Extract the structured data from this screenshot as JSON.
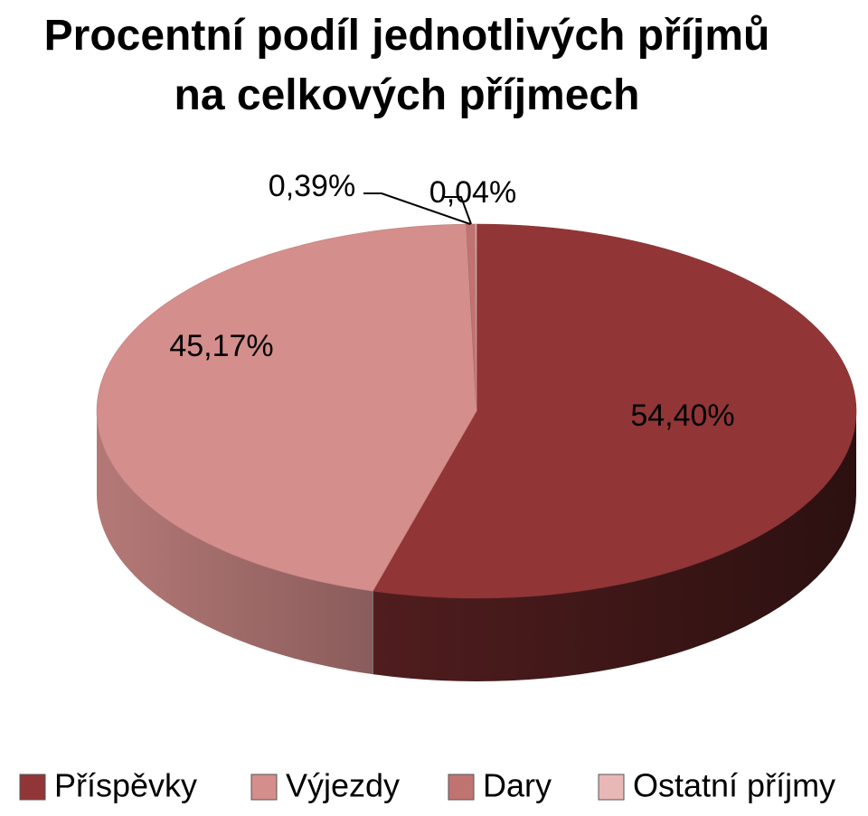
{
  "chart_data": {
    "type": "pie3d",
    "title": "Procentní podíl jednotlivých příjmů na celkových příjmech",
    "categories": [
      "Příspěvky",
      "Výjezdy",
      "Dary",
      "Ostatní příjmy"
    ],
    "values": [
      54.4,
      45.17,
      0.39,
      0.04
    ],
    "value_labels": [
      "54,40%",
      "45,17%",
      "0,39%",
      "0,04%"
    ],
    "colors": [
      "#923536",
      "#d48e8c",
      "#c07472",
      "#e8b8b7"
    ],
    "legend": "bottom"
  }
}
